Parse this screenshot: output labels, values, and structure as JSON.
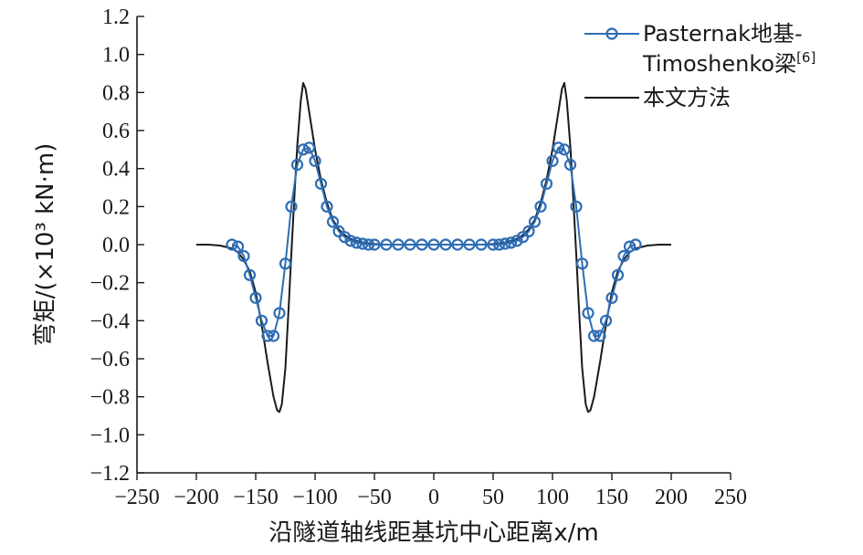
{
  "chart_data": {
    "type": "line",
    "xlabel": "沿隧道轴线距基坑中心距离x/m",
    "ylabel": "弯矩/(×10³ kN·m)",
    "xlim": [
      -250,
      250
    ],
    "ylim": [
      -1.2,
      1.2
    ],
    "x_ticks": [
      "−250",
      "−200",
      "−150",
      "−100",
      "−50",
      "0",
      "50",
      "100",
      "150",
      "200",
      "250"
    ],
    "y_ticks": [
      "1.2",
      "1.0",
      "0.8",
      "0.6",
      "0.4",
      "0.2",
      "0.0",
      "−0.2",
      "−0.4",
      "−0.6",
      "−0.8",
      "−1.0",
      "−1.2"
    ],
    "grid": false,
    "legend_position": "top-right",
    "colors": {
      "series_1": "#2e6db4",
      "series_2": "#1a1a1a"
    },
    "series": [
      {
        "name": "Pasternak地基-Timoshenko梁[6]",
        "legend_line1": "Pasternak地基-",
        "legend_line2": "Timoshenko梁",
        "legend_sup": "[6]",
        "marker": "circle-open",
        "x": [
          -170,
          -165,
          -160,
          -155,
          -150,
          -145,
          -140,
          -135,
          -130,
          -125,
          -120,
          -115,
          -110,
          -105,
          -100,
          -95,
          -90,
          -85,
          -80,
          -75,
          -70,
          -65,
          -60,
          -55,
          -50,
          -40,
          -30,
          -20,
          -10,
          0,
          10,
          20,
          30,
          40,
          50,
          55,
          60,
          65,
          70,
          75,
          80,
          85,
          90,
          95,
          100,
          105,
          110,
          115,
          120,
          125,
          130,
          135,
          140,
          145,
          150,
          155,
          160,
          165,
          170
        ],
        "y": [
          0.0,
          -0.01,
          -0.06,
          -0.16,
          -0.28,
          -0.4,
          -0.48,
          -0.48,
          -0.36,
          -0.1,
          0.2,
          0.42,
          0.5,
          0.51,
          0.44,
          0.32,
          0.2,
          0.12,
          0.07,
          0.04,
          0.02,
          0.01,
          0.005,
          0.0,
          0.0,
          0.0,
          0.0,
          0.0,
          0.0,
          0.0,
          0.0,
          0.0,
          0.0,
          0.0,
          0.0,
          0.0,
          0.005,
          0.01,
          0.02,
          0.04,
          0.07,
          0.12,
          0.2,
          0.32,
          0.44,
          0.51,
          0.5,
          0.42,
          0.2,
          -0.1,
          -0.36,
          -0.48,
          -0.48,
          -0.4,
          -0.28,
          -0.16,
          -0.06,
          -0.01,
          0.0
        ]
      },
      {
        "name": "本文方法",
        "x": [
          -200,
          -190,
          -180,
          -170,
          -165,
          -160,
          -155,
          -150,
          -145,
          -140,
          -135,
          -132,
          -130,
          -128,
          -125,
          -122,
          -120,
          -117,
          -115,
          -112,
          -110,
          -108,
          -105,
          -102,
          -100,
          -95,
          -90,
          -85,
          -80,
          -75,
          -70,
          -60,
          -50,
          -40,
          -20,
          0,
          20,
          40,
          50,
          60,
          70,
          75,
          80,
          85,
          90,
          95,
          100,
          102,
          105,
          108,
          110,
          112,
          115,
          117,
          120,
          122,
          125,
          128,
          130,
          132,
          135,
          140,
          145,
          150,
          155,
          160,
          165,
          170,
          180,
          190,
          200
        ],
        "y": [
          0.0,
          0.0,
          -0.005,
          -0.02,
          -0.04,
          -0.08,
          -0.14,
          -0.25,
          -0.42,
          -0.62,
          -0.8,
          -0.87,
          -0.88,
          -0.84,
          -0.65,
          -0.3,
          -0.05,
          0.3,
          0.52,
          0.76,
          0.85,
          0.82,
          0.7,
          0.58,
          0.5,
          0.34,
          0.22,
          0.13,
          0.08,
          0.05,
          0.03,
          0.01,
          0.003,
          0.0,
          0.0,
          0.0,
          0.0,
          0.0,
          0.003,
          0.01,
          0.03,
          0.05,
          0.08,
          0.13,
          0.22,
          0.34,
          0.5,
          0.58,
          0.7,
          0.82,
          0.85,
          0.76,
          0.52,
          0.3,
          -0.05,
          -0.3,
          -0.65,
          -0.84,
          -0.88,
          -0.87,
          -0.8,
          -0.62,
          -0.42,
          -0.25,
          -0.14,
          -0.08,
          -0.04,
          -0.02,
          -0.005,
          0.0,
          0.0
        ]
      }
    ]
  }
}
